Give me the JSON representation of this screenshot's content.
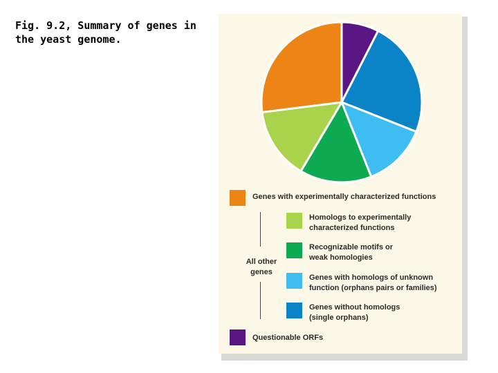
{
  "caption": {
    "line1": "Fig. 9.2, Summary of genes in",
    "line2": "the yeast genome."
  },
  "chart_data": {
    "type": "pie",
    "title": "Fig. 9.2, Summary of genes in the yeast genome.",
    "slices": [
      {
        "label": "Questionable ORFs",
        "value": 7.5,
        "color": "#5a1682"
      },
      {
        "label": "Genes without homologs (single orphans)",
        "value": 23.5,
        "color": "#0a84c6"
      },
      {
        "label": "Genes with homologs of unknown function (orphans pairs or families)",
        "value": 13,
        "color": "#3dbdf2"
      },
      {
        "label": "Recognizable motifs or weak homologies",
        "value": 14.5,
        "color": "#0eaa52"
      },
      {
        "label": "Homologs to experimentally characterized functions",
        "value": 14.5,
        "color": "#a9d34a"
      },
      {
        "label": "Genes with experimentally characterized functions",
        "value": 27,
        "color": "#ed8516"
      }
    ],
    "start_angle_deg": 0,
    "direction": "clockwise"
  },
  "legend": {
    "group_label_line1": "All other",
    "group_label_line2": "genes",
    "items": [
      {
        "lines": [
          "Genes with experimentally characterized functions"
        ],
        "color": "#ed8516"
      },
      {
        "lines": [
          "Homologs to experimentally",
          "characterized functions"
        ],
        "color": "#a9d34a"
      },
      {
        "lines": [
          "Recognizable motifs or",
          "weak homologies"
        ],
        "color": "#0eaa52"
      },
      {
        "lines": [
          "Genes with homologs of unknown",
          "function (orphans pairs or families)"
        ],
        "color": "#3dbdf2"
      },
      {
        "lines": [
          "Genes without homologs",
          "(single orphans)"
        ],
        "color": "#0a84c6"
      },
      {
        "lines": [
          "Questionable ORFs"
        ],
        "color": "#5a1682"
      }
    ]
  }
}
